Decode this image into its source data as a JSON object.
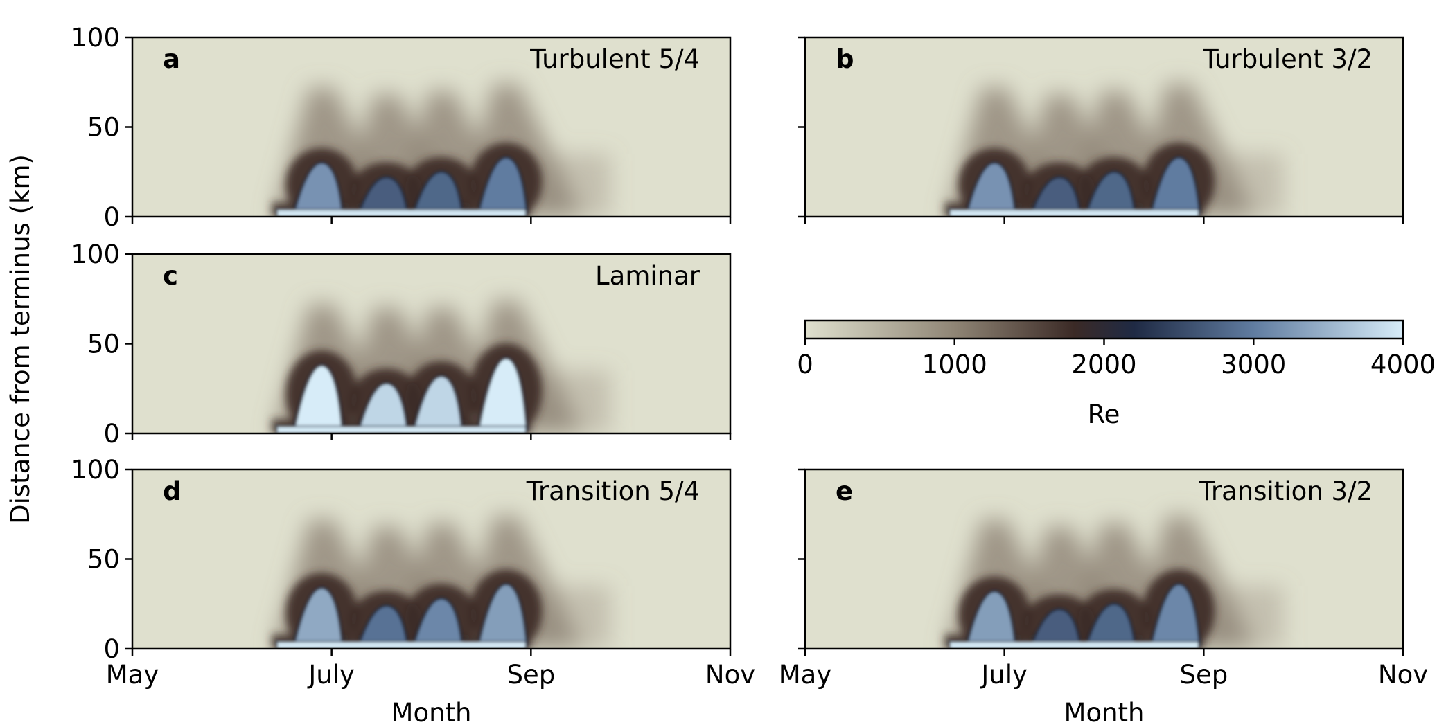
{
  "figure": {
    "ylabel": "Distance from terminus (km)",
    "xlabel": "Month"
  },
  "colors": {
    "background": "#dfe0ce",
    "mid_tan": "#8f8575",
    "dark_brown": "#3b2a26",
    "navy": "#1f2a44",
    "slate_blue": "#607ca0",
    "light_blue": "#d7ecf8"
  },
  "colorbar": {
    "label": "Re",
    "ticks": [
      "0",
      "1000",
      "2000",
      "3000",
      "4000"
    ],
    "range": [
      0,
      4000
    ]
  },
  "chart_data": [
    {
      "type": "heatmap",
      "panel": "a",
      "title": "Turbulent 5/4",
      "x_ticks": [
        "May",
        "July",
        "Sep",
        "Nov"
      ],
      "y_ticks": [
        "0",
        "50",
        "100"
      ],
      "ylim": [
        0,
        100
      ],
      "pulses": [
        {
          "month": 6.9,
          "top_km": 72,
          "core_km": 30,
          "re": 3200
        },
        {
          "month": 7.55,
          "top_km": 68,
          "core_km": 22,
          "re": 2700
        },
        {
          "month": 8.1,
          "top_km": 70,
          "core_km": 25,
          "re": 2800
        },
        {
          "month": 8.75,
          "top_km": 74,
          "core_km": 33,
          "re": 3000
        }
      ]
    },
    {
      "type": "heatmap",
      "panel": "b",
      "title": "Turbulent 3/2",
      "x_ticks": [
        "May",
        "July",
        "Sep",
        "Nov"
      ],
      "y_ticks": [
        "0",
        "50",
        "100"
      ],
      "ylim": [
        0,
        100
      ],
      "pulses": [
        {
          "month": 6.9,
          "top_km": 72,
          "core_km": 30,
          "re": 3200
        },
        {
          "month": 7.55,
          "top_km": 68,
          "core_km": 22,
          "re": 2700
        },
        {
          "month": 8.1,
          "top_km": 70,
          "core_km": 25,
          "re": 2800
        },
        {
          "month": 8.75,
          "top_km": 74,
          "core_km": 33,
          "re": 3000
        }
      ]
    },
    {
      "type": "heatmap",
      "panel": "c",
      "title": "Laminar",
      "x_ticks": [
        "May",
        "July",
        "Sep",
        "Nov"
      ],
      "y_ticks": [
        "0",
        "50",
        "100"
      ],
      "ylim": [
        0,
        100
      ],
      "pulses": [
        {
          "month": 6.9,
          "top_km": 72,
          "core_km": 38,
          "re": 4000
        },
        {
          "month": 7.55,
          "top_km": 70,
          "core_km": 28,
          "re": 3800
        },
        {
          "month": 8.1,
          "top_km": 70,
          "core_km": 32,
          "re": 3800
        },
        {
          "month": 8.75,
          "top_km": 74,
          "core_km": 42,
          "re": 4000
        }
      ]
    },
    {
      "type": "heatmap",
      "panel": "d",
      "title": "Transition 5/4",
      "x_ticks": [
        "May",
        "July",
        "Sep",
        "Nov"
      ],
      "y_ticks": [
        "0",
        "50",
        "100"
      ],
      "ylim": [
        0,
        100
      ],
      "pulses": [
        {
          "month": 6.9,
          "top_km": 72,
          "core_km": 34,
          "re": 3400
        },
        {
          "month": 7.55,
          "top_km": 68,
          "core_km": 24,
          "re": 2900
        },
        {
          "month": 8.1,
          "top_km": 70,
          "core_km": 28,
          "re": 3100
        },
        {
          "month": 8.75,
          "top_km": 74,
          "core_km": 36,
          "re": 3300
        }
      ]
    },
    {
      "type": "heatmap",
      "panel": "e",
      "title": "Transition 3/2",
      "x_ticks": [
        "May",
        "July",
        "Sep",
        "Nov"
      ],
      "y_ticks": [
        "0",
        "50",
        "100"
      ],
      "ylim": [
        0,
        100
      ],
      "pulses": [
        {
          "month": 6.9,
          "top_km": 72,
          "core_km": 32,
          "re": 3300
        },
        {
          "month": 7.55,
          "top_km": 68,
          "core_km": 22,
          "re": 2700
        },
        {
          "month": 8.1,
          "top_km": 70,
          "core_km": 25,
          "re": 2800
        },
        {
          "month": 8.75,
          "top_km": 74,
          "core_km": 36,
          "re": 3100
        }
      ]
    }
  ]
}
